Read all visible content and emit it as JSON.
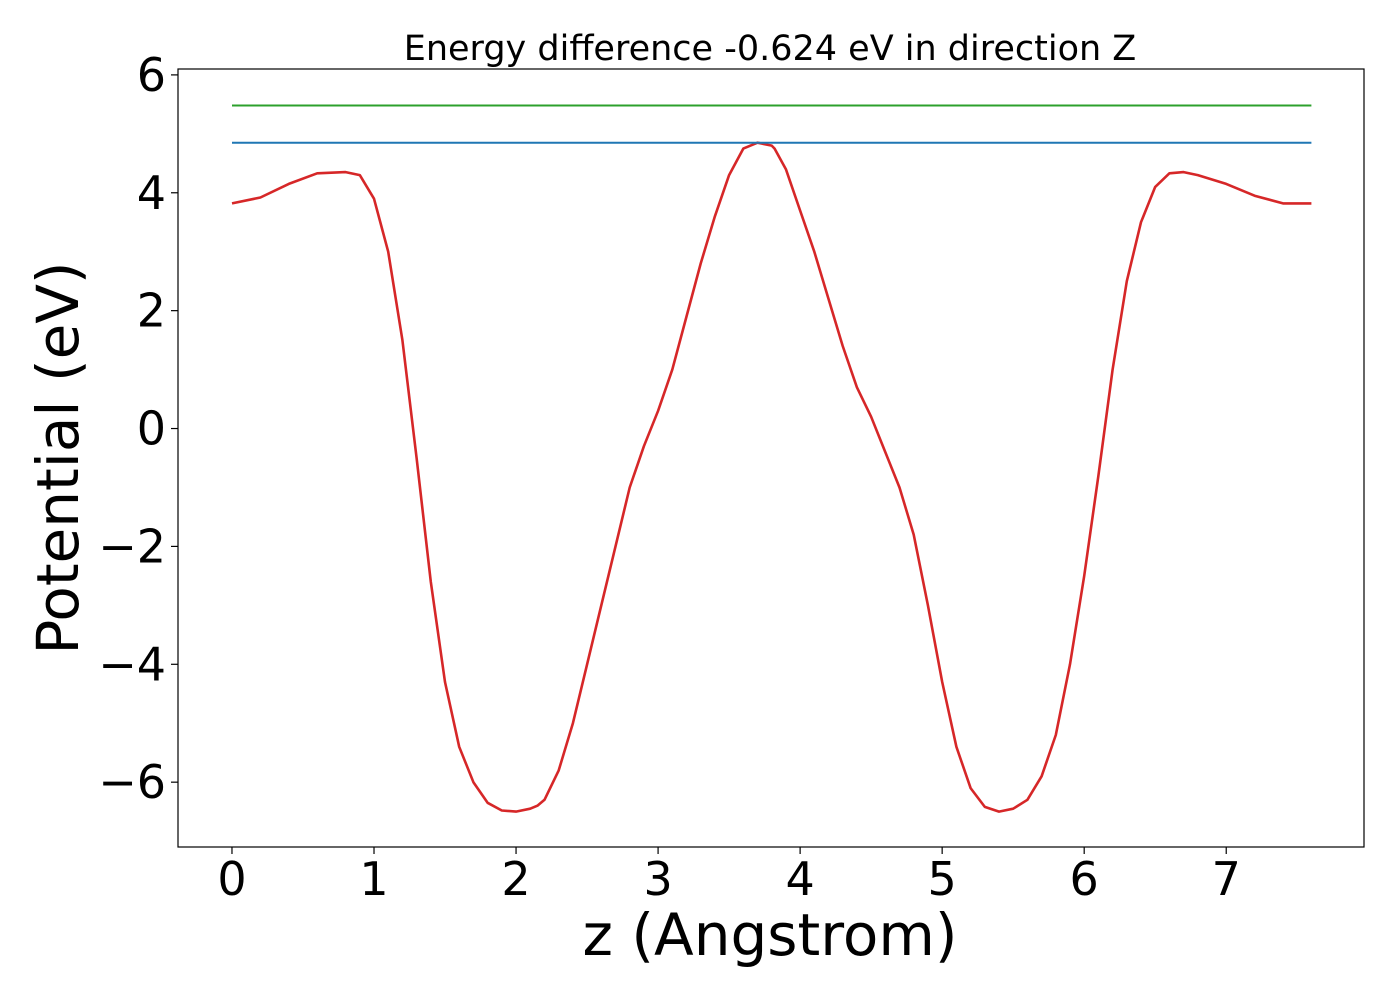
{
  "chart_data": {
    "type": "line",
    "title": "Energy difference -0.624 eV in direction Z",
    "xlabel": "z (Angstrom)",
    "ylabel": "Potential (eV)",
    "xlim": [
      -0.38,
      7.97
    ],
    "ylim": [
      -7.1,
      6.1
    ],
    "xticks": [
      0,
      1,
      2,
      3,
      4,
      5,
      6,
      7
    ],
    "xtick_labels": [
      "0",
      "1",
      "2",
      "3",
      "4",
      "5",
      "6",
      "7"
    ],
    "yticks": [
      6,
      4,
      2,
      0,
      -2,
      -4,
      -6
    ],
    "ytick_labels": [
      "6",
      "4",
      "2",
      "0",
      "−2",
      "−4",
      "−6"
    ],
    "grid": false,
    "series": [
      {
        "color": "#d62728",
        "x": [
          0.0,
          0.2,
          0.4,
          0.6,
          0.8,
          0.9,
          1.0,
          1.1,
          1.2,
          1.3,
          1.4,
          1.5,
          1.6,
          1.7,
          1.8,
          1.9,
          2.0,
          2.1,
          2.15,
          2.2,
          2.3,
          2.4,
          2.5,
          2.6,
          2.7,
          2.8,
          2.9,
          3.0,
          3.1,
          3.2,
          3.3,
          3.4,
          3.5,
          3.6,
          3.7,
          3.8,
          3.82,
          3.9,
          4.0,
          4.1,
          4.2,
          4.3,
          4.4,
          4.5,
          4.6,
          4.7,
          4.8,
          4.9,
          5.0,
          5.1,
          5.2,
          5.3,
          5.4,
          5.5,
          5.6,
          5.7,
          5.8,
          5.9,
          6.0,
          6.1,
          6.2,
          6.3,
          6.4,
          6.5,
          6.6,
          6.7,
          6.8,
          7.0,
          7.2,
          7.4,
          7.6
        ],
        "y": [
          3.82,
          3.92,
          4.15,
          4.33,
          4.35,
          4.3,
          3.9,
          3.0,
          1.5,
          -0.5,
          -2.6,
          -4.3,
          -5.4,
          -6.0,
          -6.35,
          -6.48,
          -6.5,
          -6.45,
          -6.4,
          -6.3,
          -5.8,
          -5.0,
          -4.0,
          -3.0,
          -2.0,
          -1.0,
          -0.3,
          0.3,
          1.0,
          1.9,
          2.8,
          3.6,
          4.3,
          4.75,
          4.85,
          4.8,
          4.75,
          4.4,
          3.7,
          3.0,
          2.2,
          1.4,
          0.7,
          0.2,
          -0.4,
          -1.0,
          -1.8,
          -3.0,
          -4.3,
          -5.4,
          -6.1,
          -6.42,
          -6.5,
          -6.45,
          -6.3,
          -5.9,
          -5.2,
          -4.0,
          -2.5,
          -0.8,
          1.0,
          2.5,
          3.5,
          4.1,
          4.33,
          4.35,
          4.3,
          4.15,
          3.95,
          3.82,
          3.82
        ]
      },
      {
        "color": "#1f77b4",
        "x": [
          0.0,
          7.6
        ],
        "y": [
          4.85,
          4.85
        ]
      },
      {
        "color": "#2ca02c",
        "x": [
          0.0,
          7.6
        ],
        "y": [
          5.48,
          5.48
        ]
      }
    ]
  }
}
